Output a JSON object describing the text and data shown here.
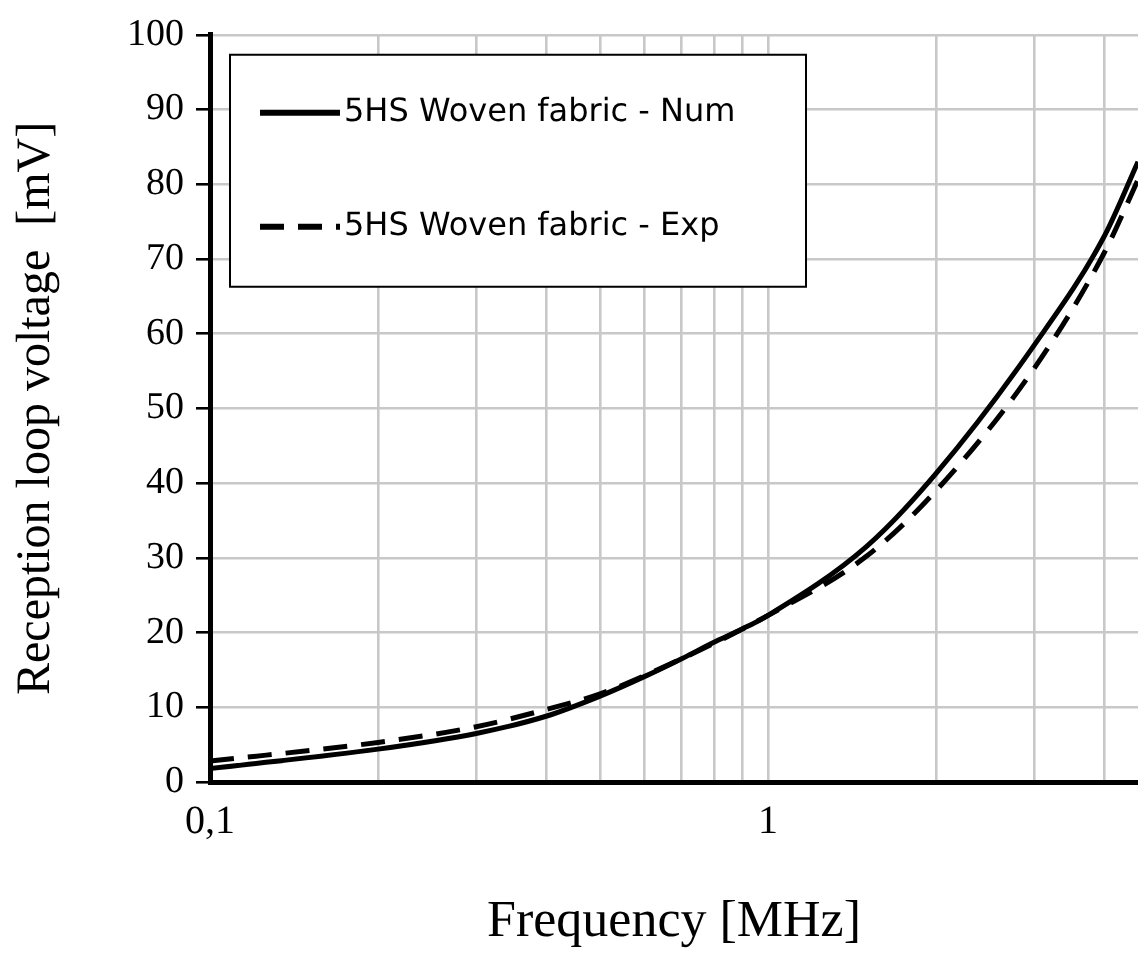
{
  "chart_data": {
    "type": "line",
    "xlabel": "Frequency [MHz]",
    "ylabel": "Reception loop voltage  [mV]",
    "log": "x",
    "xlim": [
      0.1,
      4.6
    ],
    "ylim": [
      0,
      100
    ],
    "xticks": [
      {
        "value": 0.1,
        "label": "0,1"
      },
      {
        "value": 0.2,
        "label": null
      },
      {
        "value": 0.3,
        "label": null
      },
      {
        "value": 0.4,
        "label": null
      },
      {
        "value": 0.5,
        "label": null
      },
      {
        "value": 0.6,
        "label": null
      },
      {
        "value": 0.7,
        "label": null
      },
      {
        "value": 0.8,
        "label": null
      },
      {
        "value": 0.9,
        "label": null
      },
      1,
      {
        "value": 2,
        "label": null
      },
      {
        "value": 3,
        "label": null
      },
      {
        "value": 4,
        "label": null
      }
    ],
    "yticks": [
      0,
      10,
      20,
      30,
      40,
      50,
      60,
      70,
      80,
      90,
      100
    ],
    "grid": true,
    "legend": "top left",
    "marker": "none",
    "series": [
      {
        "name": "5HS Woven fabric - Num",
        "color": "#000000",
        "line_style": "solid",
        "x": [
          0.1,
          0.2,
          0.3,
          0.4,
          0.5,
          0.6,
          0.7,
          0.8,
          0.9,
          1,
          1.5,
          2,
          3,
          4,
          4.6
        ],
        "values": [
          1.8,
          4.4,
          6.5,
          8.8,
          11.5,
          14.1,
          16.5,
          18.7,
          20.5,
          22.3,
          31.5,
          41.3,
          58.5,
          73,
          83
        ]
      },
      {
        "name": "5HS Woven fabric - Exp",
        "color": "#000000",
        "line_style": "dashed",
        "x": [
          0.1,
          0.2,
          0.3,
          0.4,
          0.5,
          0.7,
          1,
          1.5,
          2,
          3,
          4,
          4.6
        ],
        "values": [
          2.8,
          5.3,
          7.4,
          9.7,
          11.8,
          16.5,
          22.3,
          30.2,
          39,
          55.4,
          70.8,
          80.6
        ]
      }
    ]
  }
}
